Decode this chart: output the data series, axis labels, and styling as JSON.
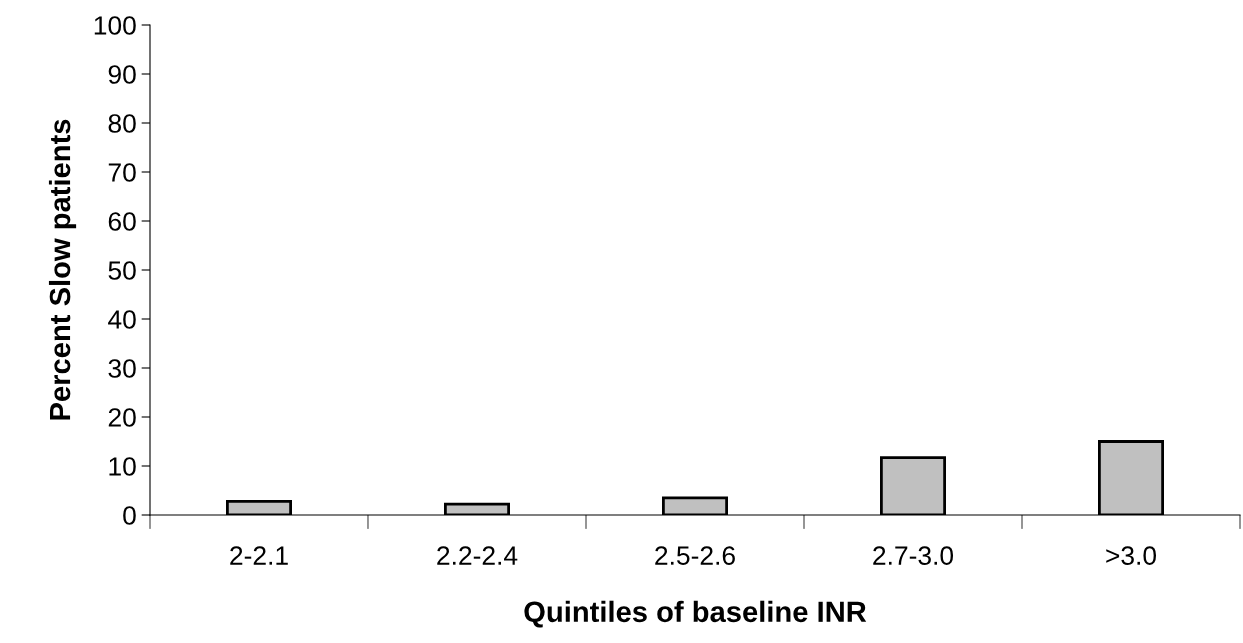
{
  "chart_data": {
    "type": "bar",
    "xlabel": "Quintiles of baseline INR",
    "ylabel": "Percent Slow patients",
    "categories": [
      "2-2.1",
      "2.2-2.4",
      "2.5-2.6",
      "2.7-3.0",
      ">3.0"
    ],
    "values": [
      2.8,
      2.2,
      3.5,
      11.7,
      15.0
    ],
    "color": "#c0c0c0",
    "ylim": [
      0,
      100
    ],
    "yticks": [
      0,
      10,
      20,
      30,
      40,
      50,
      60,
      70,
      80,
      90,
      100
    ],
    "grid": false,
    "legend": false
  }
}
